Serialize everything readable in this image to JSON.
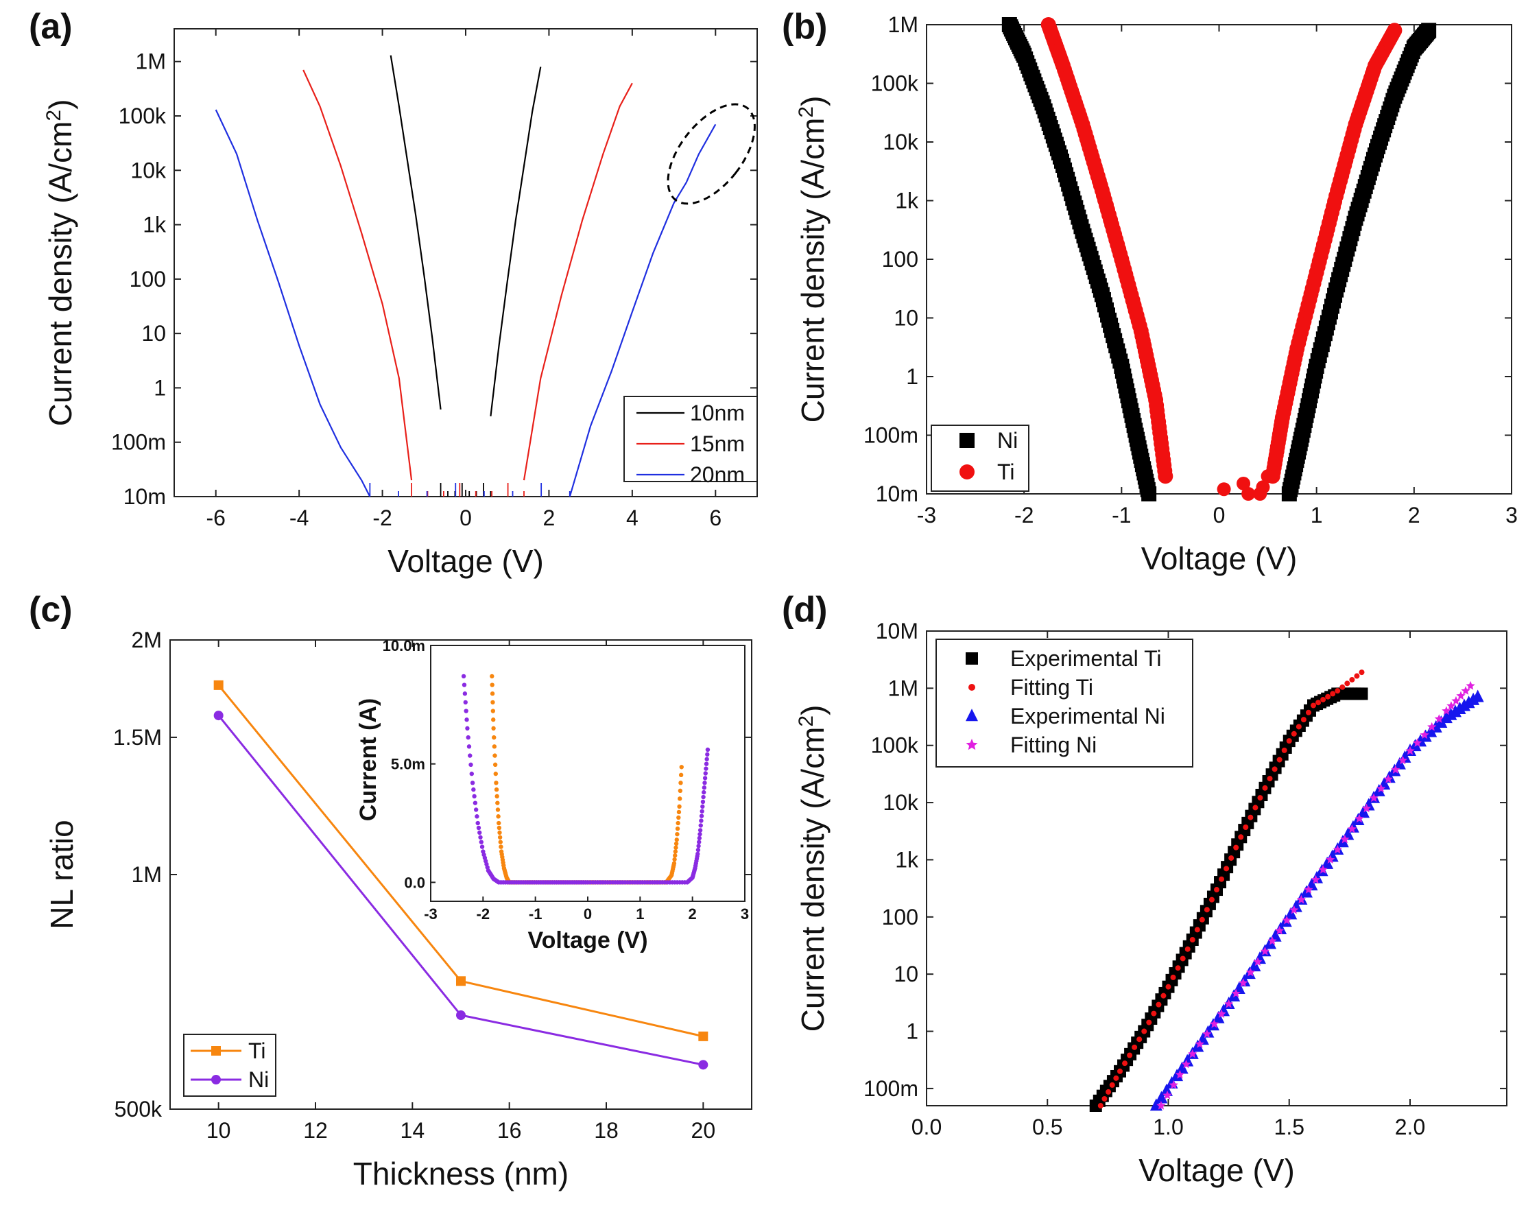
{
  "chart_data": [
    {
      "panel": "(a)",
      "type": "line",
      "xlabel": "Voltage (V)",
      "ylabel": "Current density (A/cm2)",
      "yscale": "log",
      "xlim": [
        -7,
        7
      ],
      "ylim": [
        0.01,
        4000000
      ],
      "xticks": [
        -6,
        -4,
        -2,
        0,
        2,
        4,
        6
      ],
      "yticks": [
        0.01,
        0.1,
        1,
        10,
        100,
        1000,
        10000,
        100000,
        1000000
      ],
      "ytick_labels": [
        "10m",
        "100m",
        "1",
        "10",
        "100",
        "1k",
        "10k",
        "100k",
        "1M"
      ],
      "legend_position": "bottom-right",
      "annotation": "dashed ellipse around 20nm curve near 5.5-6 V",
      "series": [
        {
          "name": "10nm",
          "color": "#000000",
          "left": {
            "x": [
              -1.8,
              -1.6,
              -1.4,
              -1.2,
              -1.0,
              -0.8,
              -0.6
            ],
            "y": [
              1300000,
              150000,
              15000,
              1500,
              120,
              8,
              0.4
            ]
          },
          "right": {
            "x": [
              0.6,
              0.8,
              1.0,
              1.2,
              1.4,
              1.6,
              1.8
            ],
            "y": [
              0.3,
              6,
              90,
              1200,
              12000,
              120000,
              800000
            ]
          }
        },
        {
          "name": "15nm",
          "color": "#e8201a",
          "left": {
            "x": [
              -3.9,
              -3.5,
              -3.0,
              -2.5,
              -2.0,
              -1.6,
              -1.3
            ],
            "y": [
              700000,
              150000,
              12000,
              700,
              35,
              1.5,
              0.02
            ]
          },
          "right": {
            "x": [
              1.4,
              1.8,
              2.3,
              2.8,
              3.3,
              3.7,
              4.0
            ],
            "y": [
              0.02,
              1.5,
              50,
              1200,
              20000,
              150000,
              400000
            ]
          }
        },
        {
          "name": "20nm",
          "color": "#1f2fe0",
          "left": {
            "x": [
              -6.0,
              -5.5,
              -5.0,
              -4.5,
              -4.0,
              -3.5,
              -3.0,
              -2.5,
              -2.3
            ],
            "y": [
              130000,
              20000,
              1200,
              90,
              6,
              0.5,
              0.08,
              0.02,
              0.01
            ]
          },
          "right": {
            "x": [
              2.5,
              3.0,
              3.5,
              4.0,
              4.5,
              5.0,
              5.3,
              5.6,
              6.0
            ],
            "y": [
              0.01,
              0.2,
              2,
              25,
              300,
              2500,
              6000,
              20000,
              70000
            ]
          }
        }
      ]
    },
    {
      "panel": "(b)",
      "type": "scatter",
      "xlabel": "Voltage (V)",
      "ylabel": "Current density (A/cm2)",
      "yscale": "log",
      "xlim": [
        -3,
        3
      ],
      "ylim": [
        0.01,
        1000000
      ],
      "xticks": [
        -3,
        -2,
        -1,
        0,
        1,
        2,
        3
      ],
      "yticks": [
        0.01,
        0.1,
        1,
        10,
        100,
        1000,
        10000,
        100000,
        1000000
      ],
      "ytick_labels": [
        "10m",
        "100m",
        "1",
        "10",
        "100",
        "1k",
        "10k",
        "100k",
        "1M"
      ],
      "legend_position": "bottom-left",
      "series": [
        {
          "name": "Ni",
          "color": "#000000",
          "marker": "square",
          "left": {
            "x": [
              -2.15,
              -2.0,
              -1.8,
              -1.6,
              -1.4,
              -1.2,
              -1.0,
              -0.85,
              -0.72
            ],
            "y": [
              1000000,
              300000,
              40000,
              4000,
              300,
              25,
              1.5,
              0.1,
              0.01
            ]
          },
          "right": {
            "x": [
              0.72,
              0.85,
              1.0,
              1.2,
              1.4,
              1.6,
              1.8,
              2.0,
              2.15
            ],
            "y": [
              0.01,
              0.1,
              1.5,
              30,
              500,
              6000,
              60000,
              400000,
              800000
            ]
          }
        },
        {
          "name": "Ti",
          "color": "#f01010",
          "marker": "circle",
          "left": {
            "x": [
              -1.75,
              -1.6,
              -1.4,
              -1.2,
              -1.0,
              -0.8,
              -0.65,
              -0.55
            ],
            "y": [
              1000000,
              200000,
              20000,
              1500,
              100,
              6,
              0.4,
              0.02
            ]
          },
          "right": {
            "x": [
              0.55,
              0.65,
              0.8,
              1.0,
              1.2,
              1.4,
              1.6,
              1.8
            ],
            "y": [
              0.02,
              0.2,
              3,
              60,
              1200,
              20000,
              200000,
              800000
            ]
          }
        }
      ]
    },
    {
      "panel": "(c)",
      "type": "line",
      "xlabel": "Thickness (nm)",
      "ylabel": "NL ratio",
      "yscale": "log",
      "xlim": [
        9,
        21
      ],
      "ylim": [
        500000,
        2000000
      ],
      "xticks": [
        10,
        12,
        14,
        16,
        18,
        20
      ],
      "yticks": [
        500000,
        1000000,
        1500000,
        2000000
      ],
      "ytick_labels": [
        "500k",
        "1M",
        "1.5M",
        "2M"
      ],
      "legend_position": "bottom-left",
      "categories": [
        10,
        15,
        20
      ],
      "series": [
        {
          "name": "Ti",
          "color": "#f7860f",
          "marker": "square",
          "values": [
            1750000,
            730000,
            620000
          ]
        },
        {
          "name": "Ni",
          "color": "#8a2be2",
          "marker": "circle",
          "values": [
            1600000,
            660000,
            570000
          ]
        }
      ],
      "inset": {
        "xlabel": "Voltage (V)",
        "ylabel": "Current (A)",
        "xlim": [
          -3,
          3
        ],
        "ylim": [
          -0.0008,
          0.01
        ],
        "xticks": [
          -3,
          -2,
          -1,
          0,
          1,
          2,
          3
        ],
        "yticks": [
          0.0,
          0.005,
          0.01
        ],
        "ytick_labels": [
          "0.0",
          "5.0m",
          "10.0m"
        ],
        "series": [
          {
            "name": "Ti",
            "color": "#f7860f",
            "x": [
              -1.83,
              -1.8,
              -1.75,
              -1.7,
              -1.65,
              -1.6,
              -1.55,
              -1.5,
              0,
              1.5,
              1.6,
              1.65,
              1.7,
              1.75,
              1.8
            ],
            "y": [
              0.0087,
              0.0065,
              0.0042,
              0.0025,
              0.0013,
              0.0006,
              0.0002,
              0.0,
              0.0,
              0.0,
              0.0003,
              0.0008,
              0.0018,
              0.0032,
              0.0052
            ]
          },
          {
            "name": "Ni",
            "color": "#8a2be2",
            "x": [
              -2.37,
              -2.3,
              -2.2,
              -2.1,
              -2.0,
              -1.9,
              -1.8,
              -1.7,
              0,
              1.9,
              2.0,
              2.05,
              2.1,
              2.15,
              2.2,
              2.25,
              2.3
            ],
            "y": [
              0.0087,
              0.0065,
              0.0042,
              0.0025,
              0.0013,
              0.0005,
              0.00015,
              0.0,
              0.0,
              0.0,
              0.0002,
              0.0006,
              0.0012,
              0.0022,
              0.0034,
              0.0046,
              0.0058
            ]
          }
        ]
      }
    },
    {
      "panel": "(d)",
      "type": "scatter",
      "xlabel": "Voltage (V)",
      "ylabel": "Current density (A/cm2)",
      "yscale": "log",
      "xlim": [
        0.0,
        2.4
      ],
      "ylim": [
        0.05,
        10000000
      ],
      "xticks": [
        0.0,
        0.5,
        1.0,
        1.5,
        2.0
      ],
      "xtick_labels": [
        "0.0",
        "0.5",
        "1.0",
        "1.5",
        "2.0"
      ],
      "yticks": [
        0.1,
        1,
        10,
        100,
        1000,
        10000,
        100000,
        1000000,
        10000000
      ],
      "ytick_labels": [
        "100m",
        "1",
        "10",
        "100",
        "1k",
        "10k",
        "100k",
        "1M",
        "10M"
      ],
      "legend_position": "top-left",
      "series": [
        {
          "name": "Experimental Ti",
          "color": "#000000",
          "marker": "square",
          "x": [
            0.7,
            0.8,
            0.9,
            1.0,
            1.1,
            1.2,
            1.3,
            1.4,
            1.5,
            1.6,
            1.7,
            1.8
          ],
          "y": [
            0.05,
            0.2,
            1,
            6,
            40,
            300,
            2500,
            18000,
            120000,
            500000,
            800000,
            800000
          ]
        },
        {
          "name": "Fitting Ti",
          "color": "#ee1111",
          "marker": "dot",
          "x": [
            0.72,
            0.8,
            0.9,
            1.0,
            1.1,
            1.2,
            1.3,
            1.4,
            1.5,
            1.6,
            1.7,
            1.8
          ],
          "y": [
            0.05,
            0.2,
            1,
            6,
            40,
            300,
            2500,
            18000,
            120000,
            500000,
            900000,
            1900000
          ]
        },
        {
          "name": "Experimental Ni",
          "color": "#1616ee",
          "marker": "triangle",
          "x": [
            0.95,
            1.1,
            1.25,
            1.4,
            1.55,
            1.7,
            1.85,
            2.0,
            2.15,
            2.28
          ],
          "y": [
            0.05,
            0.4,
            3,
            25,
            200,
            1500,
            12000,
            80000,
            300000,
            700000
          ]
        },
        {
          "name": "Fitting Ni",
          "color": "#e020e0",
          "marker": "star",
          "x": [
            0.97,
            1.1,
            1.25,
            1.4,
            1.55,
            1.7,
            1.85,
            2.0,
            2.15,
            2.25
          ],
          "y": [
            0.05,
            0.4,
            3,
            25,
            200,
            1500,
            12000,
            80000,
            400000,
            1100000
          ]
        }
      ]
    }
  ]
}
